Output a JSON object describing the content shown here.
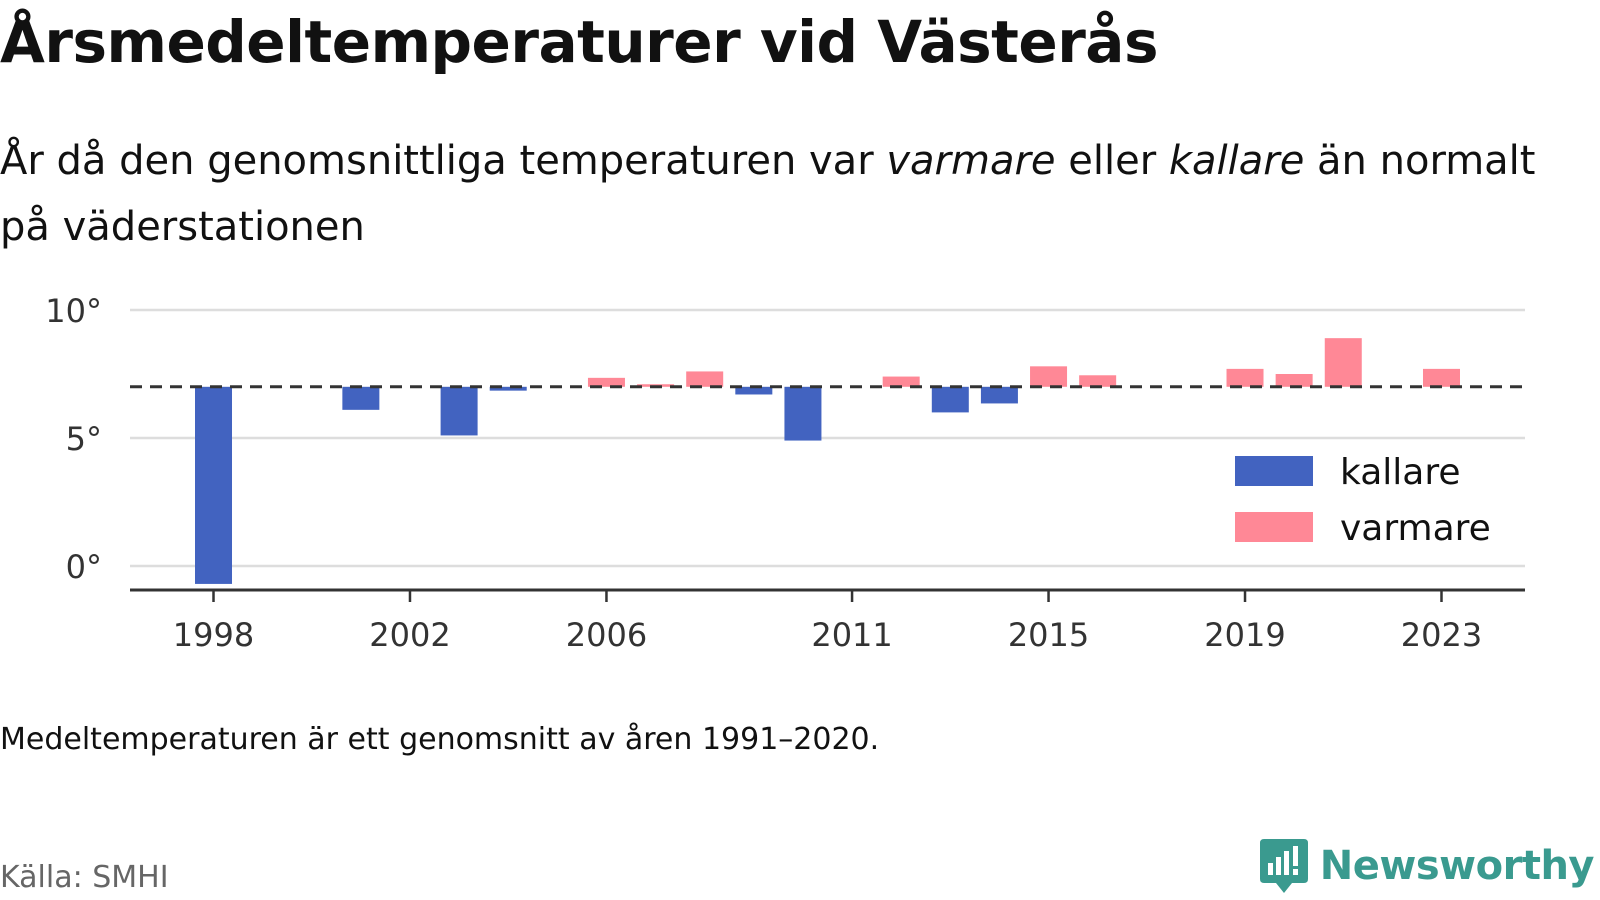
{
  "title": "Årsmedeltemperaturer vid Västerås",
  "subtitle": {
    "part1": "År då den genomsnittliga temperaturen var ",
    "warm_word": "varmare",
    "part2": " eller ",
    "cold_word": "kallare",
    "part3": " än normalt på väderstationen"
  },
  "note": "Medeltemperaturen är ett genomsnitt av åren 1991–2020.",
  "source": "Källa: SMHI",
  "brand": {
    "name": "Newsworthy",
    "icon": "newsworthy-logo-icon"
  },
  "colors": {
    "cold": "#4263c0",
    "warm": "#ff8896",
    "axis": "#333333",
    "grid": "#dddddd",
    "reference": "#333333"
  },
  "chart_data": {
    "type": "bar",
    "reference_value": 7.0,
    "ylim": [
      -0.8,
      10.4
    ],
    "yticks": [
      0,
      5,
      10
    ],
    "ytick_labels": [
      "0°",
      "5°",
      "10°"
    ],
    "xticks": [
      1998,
      2002,
      2006,
      2011,
      2015,
      2019,
      2023
    ],
    "xtick_labels": [
      "1998",
      "2002",
      "2006",
      "2011",
      "2015",
      "2019",
      "2023"
    ],
    "legend": {
      "position": "right",
      "entries": [
        {
          "key": "cold",
          "label": "kallare"
        },
        {
          "key": "warm",
          "label": "varmare"
        }
      ]
    },
    "bars": [
      {
        "x": 1998,
        "value": -0.7
      },
      {
        "x": 2001,
        "value": 6.1
      },
      {
        "x": 2003,
        "value": 5.1
      },
      {
        "x": 2004,
        "value": 6.85
      },
      {
        "x": 2006,
        "value": 7.35
      },
      {
        "x": 2007,
        "value": 7.1
      },
      {
        "x": 2008,
        "value": 7.6
      },
      {
        "x": 2009,
        "value": 6.7
      },
      {
        "x": 2010,
        "value": 4.9
      },
      {
        "x": 2012,
        "value": 7.4
      },
      {
        "x": 2013,
        "value": 6.0
      },
      {
        "x": 2014,
        "value": 6.35
      },
      {
        "x": 2015,
        "value": 7.8
      },
      {
        "x": 2016,
        "value": 7.45
      },
      {
        "x": 2019,
        "value": 7.7
      },
      {
        "x": 2020,
        "value": 7.5
      },
      {
        "x": 2021,
        "value": 8.9
      },
      {
        "x": 2023,
        "value": 7.7
      }
    ]
  }
}
